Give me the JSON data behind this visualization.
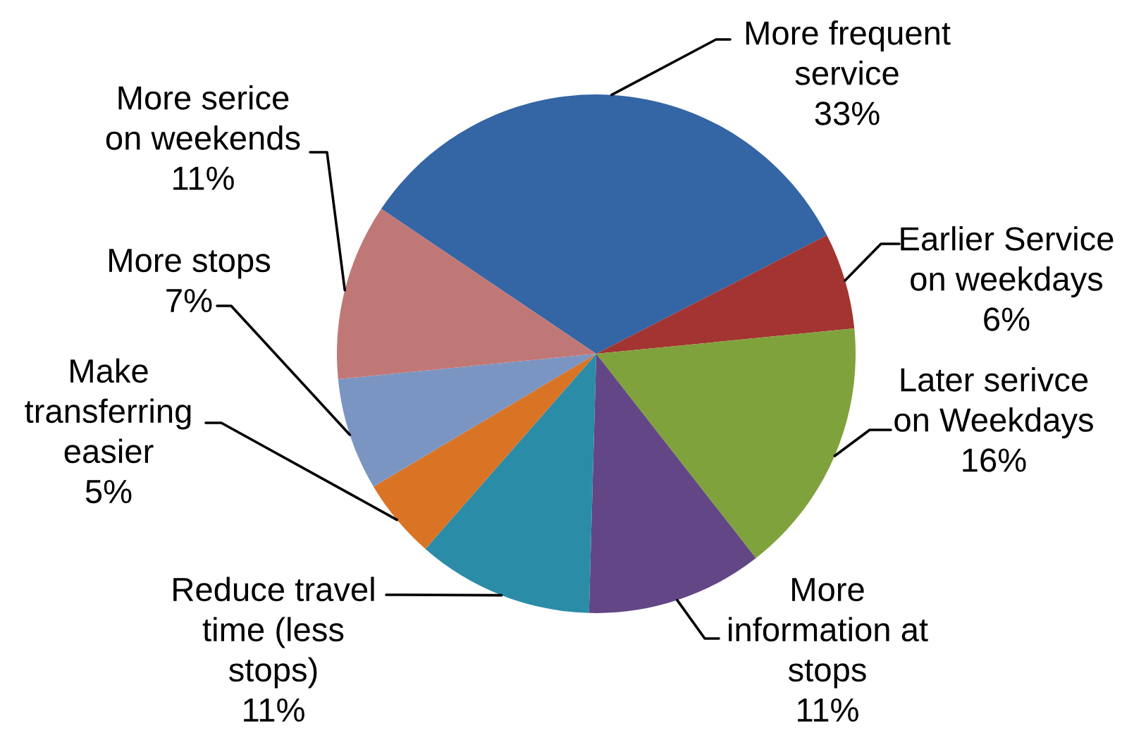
{
  "chart_data": {
    "type": "pie",
    "categories": [
      "More frequent\nservice",
      "Earlier Service\non weekdays",
      "Later serivce\non Weekdays",
      "More\ninformation at\nstops",
      "Reduce travel\ntime (less\nstops)",
      "Make\ntransferring\neasier",
      "More stops",
      "More serice\non weekends"
    ],
    "values": [
      33,
      6,
      16,
      11,
      11,
      5,
      7,
      11
    ],
    "value_labels": [
      "33%",
      "6%",
      "16%",
      "11%",
      "11%",
      "5%",
      "7%",
      "11%"
    ],
    "colors": [
      "#3465a4",
      "#a33431",
      "#80a23c",
      "#634685",
      "#2b8ca8",
      "#d97425",
      "#7b95c3",
      "#c07876"
    ]
  }
}
